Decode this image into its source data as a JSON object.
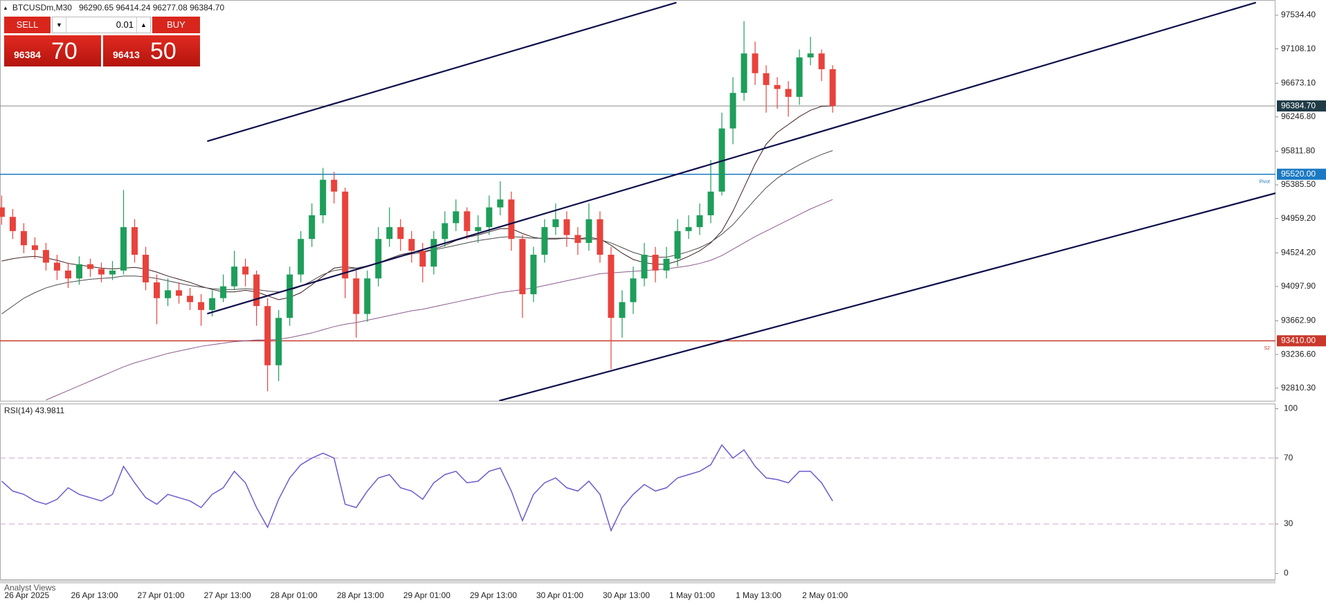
{
  "header": {
    "symbol": "BTCUSDm,M30",
    "ohlc": "96290.65 96414.24 96277.08 96384.70"
  },
  "trade_panel": {
    "sell": "SELL",
    "lot": "0.01",
    "buy": "BUY",
    "bid": "96384",
    "bid_big": "70",
    "ask": "96413",
    "ask_big": "50"
  },
  "footer_tab": "Analyst Views",
  "chart_data": [
    {
      "type": "candlestick",
      "categories": [
        "26 Apr 2025",
        null,
        null,
        null,
        null,
        null,
        "26 Apr 13:00",
        null,
        null,
        null,
        null,
        null,
        "27 Apr 01:00",
        null,
        null,
        null,
        null,
        null,
        "27 Apr 13:00",
        null,
        null,
        null,
        null,
        null,
        "28 Apr 01:00",
        null,
        null,
        null,
        null,
        null,
        "28 Apr 13:00",
        null,
        null,
        null,
        null,
        null,
        "29 Apr 01:00",
        null,
        null,
        null,
        null,
        null,
        "29 Apr 13:00",
        null,
        null,
        null,
        null,
        null,
        "30 Apr 01:00",
        null,
        null,
        null,
        null,
        null,
        "30 Apr 13:00",
        null,
        null,
        null,
        null,
        null,
        "1 May 01:00",
        null,
        null,
        null,
        null,
        null,
        "1 May 13:00",
        null,
        null,
        null,
        null,
        null,
        "2 May 01:00",
        null,
        null,
        null
      ],
      "open": [
        95100,
        94980,
        94800,
        94620,
        94560,
        94400,
        94300,
        94200,
        94380,
        94320,
        94250,
        94300,
        94850,
        94500,
        94150,
        93950,
        94050,
        93980,
        93900,
        93800,
        93950,
        94100,
        94350,
        94250,
        93850,
        93100,
        93700,
        94250,
        94700,
        95000,
        95450,
        95300,
        94200,
        93750,
        94200,
        94700,
        94850,
        94700,
        94550,
        94350,
        94700,
        94900,
        95050,
        94800,
        94850,
        95100,
        95200,
        94700,
        94000,
        94500,
        94850,
        94950,
        94750,
        94650,
        94950,
        94500,
        93700,
        93900,
        94200,
        94500,
        94300,
        94450,
        94800,
        94850,
        95000,
        95300,
        96100,
        96550,
        97050,
        96800,
        96650,
        96600,
        96500,
        97000,
        97050,
        96850
      ],
      "high": [
        95250,
        95080,
        94900,
        94720,
        94650,
        94500,
        94400,
        94480,
        94450,
        94400,
        94420,
        95320,
        94950,
        94600,
        94250,
        94200,
        94150,
        94080,
        94000,
        94050,
        94250,
        94550,
        94450,
        94300,
        93950,
        93800,
        94350,
        94800,
        95150,
        95600,
        95550,
        95350,
        94300,
        94300,
        94850,
        95100,
        94950,
        94800,
        94650,
        94800,
        95050,
        95200,
        95100,
        95000,
        95250,
        95430,
        95300,
        94750,
        94600,
        94950,
        95150,
        95050,
        94850,
        95150,
        95050,
        94600,
        94050,
        94350,
        94650,
        94600,
        94600,
        94950,
        95000,
        95150,
        95700,
        96300,
        96750,
        97460,
        97200,
        96900,
        96750,
        96700,
        97100,
        97260,
        97100,
        96900
      ],
      "low": [
        94880,
        94700,
        94520,
        94450,
        94300,
        94180,
        94080,
        94120,
        94220,
        94150,
        94180,
        94250,
        94400,
        94050,
        93620,
        93850,
        93880,
        93800,
        93600,
        93720,
        93900,
        94050,
        94100,
        93600,
        92770,
        92900,
        93600,
        94150,
        94600,
        94900,
        95150,
        93950,
        93450,
        93650,
        94100,
        94600,
        94550,
        94400,
        94150,
        94250,
        94600,
        94800,
        94700,
        94650,
        94750,
        95000,
        94550,
        93700,
        93900,
        94400,
        94750,
        94600,
        94500,
        94550,
        94400,
        93050,
        93450,
        93750,
        94100,
        94150,
        94200,
        94350,
        94700,
        94750,
        94900,
        95250,
        95900,
        96450,
        96650,
        96300,
        96350,
        96250,
        96400,
        96900,
        96700,
        96300
      ],
      "close": [
        94980,
        94800,
        94620,
        94560,
        94400,
        94300,
        94200,
        94380,
        94320,
        94250,
        94300,
        94850,
        94500,
        94150,
        93950,
        94050,
        93980,
        93900,
        93800,
        93950,
        94100,
        94350,
        94250,
        93850,
        93100,
        93700,
        94250,
        94700,
        95000,
        95450,
        95300,
        94200,
        93750,
        94200,
        94700,
        94850,
        94700,
        94550,
        94350,
        94700,
        94900,
        95050,
        94800,
        94850,
        95100,
        95200,
        94700,
        94000,
        94500,
        94850,
        94950,
        94750,
        94650,
        94950,
        94500,
        93700,
        93900,
        94200,
        94500,
        94300,
        94450,
        94800,
        94850,
        95000,
        95300,
        96100,
        96550,
        97050,
        96800,
        96650,
        96600,
        96500,
        97000,
        97050,
        96850,
        96384.7
      ],
      "up_color": "#1e9e5a",
      "down_color": "#e8423c",
      "ylim": [
        92650,
        97727
      ],
      "yticks": [
        {
          "value": 97534.4,
          "label": "97534.40"
        },
        {
          "value": 97108.1,
          "label": "97108.10"
        },
        {
          "value": 96673.1,
          "label": "96673.10"
        },
        {
          "value": 96246.8,
          "label": "96246.80"
        },
        {
          "value": 95811.8,
          "label": "95811.80"
        },
        {
          "value": 95385.5,
          "label": "95385.50"
        },
        {
          "value": 94959.2,
          "label": "94959.20"
        },
        {
          "value": 94524.2,
          "label": "94524.20"
        },
        {
          "value": 94097.9,
          "label": "94097.90"
        },
        {
          "value": 93662.9,
          "label": "93662.90"
        },
        {
          "value": 93236.6,
          "label": "93236.60"
        },
        {
          "value": 92810.3,
          "label": "92810.30"
        }
      ],
      "grid": false,
      "last": {
        "value": 96384.7,
        "label": "96384.70",
        "color": "#1f3b46"
      },
      "levels": [
        {
          "value": 95520,
          "label": "95520.00",
          "tag": "Pivot",
          "color": "#1b79c2"
        },
        {
          "value": 93410,
          "label": "93410.00",
          "tag": "S2",
          "color": "#c9382b"
        }
      ],
      "overlays": [
        {
          "color": "#3a1f1f",
          "values": [
            94420,
            94450,
            94470,
            94480,
            94460,
            94430,
            94390,
            94370,
            94350,
            94330,
            94320,
            94330,
            94340,
            94320,
            94280,
            94230,
            94190,
            94150,
            94100,
            94060,
            94030,
            94030,
            94050,
            94030,
            93980,
            93930,
            93960,
            94020,
            94120,
            94230,
            94330,
            94350,
            94330,
            94350,
            94400,
            94450,
            94500,
            94530,
            94540,
            94570,
            94620,
            94680,
            94720,
            94750,
            94790,
            94830,
            94830,
            94770,
            94720,
            94700,
            94700,
            94710,
            94700,
            94720,
            94700,
            94620,
            94520,
            94440,
            94400,
            94380,
            94380,
            94420,
            94480,
            94550,
            94650,
            94800,
            95050,
            95350,
            95650,
            95900,
            96050,
            96150,
            96250,
            96330,
            96380,
            96385
          ]
        },
        {
          "color": "#4a4a4a",
          "values": [
            93750,
            93850,
            93950,
            94020,
            94080,
            94120,
            94150,
            94170,
            94190,
            94200,
            94210,
            94230,
            94230,
            94220,
            94200,
            94170,
            94140,
            94110,
            94090,
            94070,
            94060,
            94060,
            94070,
            94060,
            94040,
            94030,
            94050,
            94100,
            94170,
            94250,
            94300,
            94320,
            94330,
            94360,
            94400,
            94440,
            94480,
            94510,
            94530,
            94560,
            94590,
            94620,
            94650,
            94680,
            94700,
            94720,
            94730,
            94720,
            94710,
            94710,
            94710,
            94710,
            94700,
            94700,
            94690,
            94650,
            94590,
            94530,
            94490,
            94470,
            94470,
            94500,
            94540,
            94590,
            94660,
            94760,
            94880,
            95040,
            95200,
            95350,
            95470,
            95560,
            95640,
            95710,
            95770,
            95820
          ]
        },
        {
          "color": "#8a5a8a",
          "values": [
            null,
            null,
            null,
            null,
            92660,
            92720,
            92780,
            92840,
            92900,
            92960,
            93020,
            93080,
            93130,
            93170,
            93210,
            93250,
            93280,
            93310,
            93340,
            93360,
            93380,
            93400,
            93410,
            93420,
            93420,
            93430,
            93450,
            93480,
            93510,
            93550,
            93590,
            93620,
            93640,
            93670,
            93700,
            93730,
            93760,
            93790,
            93810,
            93840,
            93870,
            93900,
            93930,
            93960,
            93990,
            94020,
            94040,
            94060,
            94080,
            94110,
            94140,
            94170,
            94200,
            94230,
            94260,
            94270,
            94280,
            94290,
            94300,
            94310,
            94320,
            94340,
            94360,
            94390,
            94430,
            94490,
            94570,
            94650,
            94730,
            94800,
            94870,
            94940,
            95010,
            95080,
            95140,
            95200
          ]
        }
      ],
      "trendlines": [
        {
          "x": [
            18.55,
            60.9
          ],
          "y": [
            95938,
            97695
          ]
        },
        {
          "x": [
            18.55,
            113.2
          ],
          "y": [
            93753,
            97695
          ]
        },
        {
          "x": [
            44.9,
            115.1
          ],
          "y": [
            92650,
            95285
          ]
        }
      ],
      "trendline_color": "#0d0d4a"
    },
    {
      "type": "line",
      "title": "RSI(14) 43.9811",
      "color": "#6a5acd",
      "values": [
        56,
        50,
        48,
        44,
        42,
        45,
        52,
        48,
        46,
        44,
        48,
        65,
        55,
        46,
        42,
        48,
        46,
        44,
        40,
        48,
        52,
        62,
        55,
        40,
        28,
        45,
        58,
        66,
        70,
        73,
        70,
        42,
        40,
        50,
        58,
        60,
        52,
        50,
        45,
        55,
        60,
        62,
        55,
        56,
        62,
        64,
        50,
        32,
        48,
        55,
        58,
        52,
        50,
        56,
        48,
        26,
        40,
        48,
        54,
        50,
        52,
        58,
        60,
        62,
        66,
        78,
        70,
        75,
        65,
        58,
        57,
        55,
        62,
        62,
        55,
        43.98
      ],
      "ylim": [
        -3.6,
        103.1
      ],
      "yticks": [
        0,
        30,
        70,
        100
      ],
      "levels": [
        70,
        30
      ],
      "level_color": "#c9a9c9"
    }
  ]
}
